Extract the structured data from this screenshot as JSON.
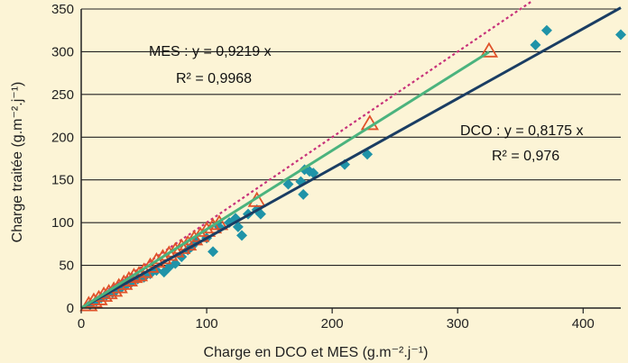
{
  "chart_data": {
    "type": "scatter",
    "title": "",
    "xlabel": "Charge en DCO et MES (g.m⁻².j⁻¹)",
    "ylabel": "Charge traitée (g.m⁻².j⁻¹)",
    "xlim": [
      0,
      430
    ],
    "ylim": [
      0,
      350
    ],
    "x_ticks": [
      0,
      100,
      200,
      300,
      400
    ],
    "y_ticks": [
      0,
      50,
      100,
      150,
      200,
      250,
      300,
      350
    ],
    "grid": "horizontal",
    "colors": {
      "background": "#fcf4d6",
      "dco_points": "#1f93a8",
      "dco_fit": "#1a3d63",
      "mes_points": "#e0522a",
      "mes_fit": "#4bb37e",
      "reference_line": "#c7317a",
      "grid": "#222222"
    },
    "series": [
      {
        "key": "dco",
        "marker": "diamond",
        "fit_slope": 0.8175,
        "points": [
          [
            7,
            4
          ],
          [
            12,
            8
          ],
          [
            16,
            12
          ],
          [
            20,
            15
          ],
          [
            25,
            18
          ],
          [
            28,
            21
          ],
          [
            32,
            24
          ],
          [
            36,
            27
          ],
          [
            40,
            30
          ],
          [
            45,
            34
          ],
          [
            50,
            36
          ],
          [
            55,
            40
          ],
          [
            60,
            44
          ],
          [
            66,
            42
          ],
          [
            70,
            48
          ],
          [
            75,
            52
          ],
          [
            80,
            60
          ],
          [
            85,
            68
          ],
          [
            88,
            72
          ],
          [
            92,
            78
          ],
          [
            100,
            82
          ],
          [
            105,
            66
          ],
          [
            110,
            95
          ],
          [
            118,
            100
          ],
          [
            123,
            105
          ],
          [
            125,
            95
          ],
          [
            128,
            85
          ],
          [
            133,
            110
          ],
          [
            140,
            115
          ],
          [
            143,
            110
          ],
          [
            165,
            145
          ],
          [
            175,
            148
          ],
          [
            177,
            133
          ],
          [
            178,
            162
          ],
          [
            182,
            160
          ],
          [
            185,
            158
          ],
          [
            210,
            168
          ],
          [
            228,
            180
          ],
          [
            362,
            308
          ],
          [
            371,
            325
          ],
          [
            430,
            320
          ]
        ]
      },
      {
        "key": "mes",
        "marker": "triangle",
        "fit_slope": 0.9219,
        "points": [
          [
            6,
            3
          ],
          [
            10,
            7
          ],
          [
            14,
            10
          ],
          [
            18,
            14
          ],
          [
            22,
            17
          ],
          [
            26,
            20
          ],
          [
            30,
            24
          ],
          [
            34,
            28
          ],
          [
            38,
            32
          ],
          [
            42,
            36
          ],
          [
            46,
            38
          ],
          [
            50,
            42
          ],
          [
            55,
            48
          ],
          [
            60,
            54
          ],
          [
            65,
            58
          ],
          [
            70,
            62
          ],
          [
            75,
            66
          ],
          [
            80,
            70
          ],
          [
            85,
            74
          ],
          [
            90,
            80
          ],
          [
            95,
            84
          ],
          [
            100,
            90
          ],
          [
            105,
            94
          ],
          [
            110,
            98
          ],
          [
            140,
            125
          ],
          [
            230,
            215
          ],
          [
            325,
            300
          ]
        ]
      }
    ],
    "fit_range": {
      "dco": [
        0,
        430
      ],
      "mes": [
        0,
        325
      ]
    },
    "reference_line": {
      "slope": 1,
      "style": "dotted",
      "x_range": [
        0,
        360
      ]
    },
    "annotations": {
      "mes_eq": "MES : y = 0,9219 x",
      "mes_r2": "R² = 0,9968",
      "dco_eq": "DCO : y = 0,8175 x",
      "dco_r2": "R² = 0,976"
    }
  }
}
